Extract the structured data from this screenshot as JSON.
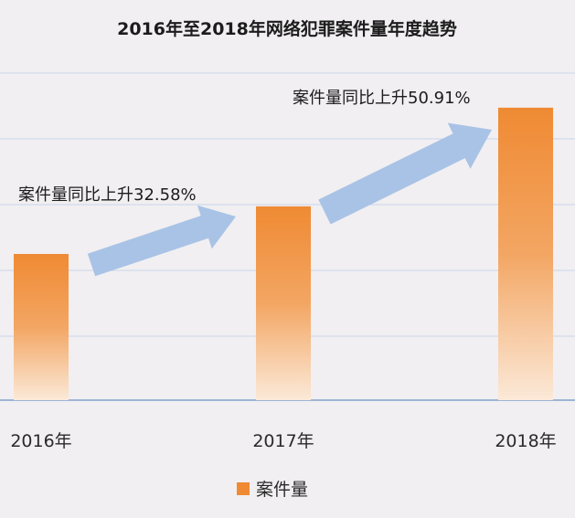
{
  "chart_data": {
    "type": "bar",
    "title": "2016年至2018年网络犯罪案件量年度趋势",
    "categories": [
      "2016年",
      "2017年",
      "2018年"
    ],
    "series": [
      {
        "name": "案件量",
        "values": [
          100,
          132.58,
          200.08
        ]
      }
    ],
    "ylim": [
      0,
      230
    ],
    "grid": true,
    "legend": "bottom",
    "annotations": [
      {
        "text": "案件量同比上升32.58%",
        "from": "2016年",
        "to": "2017年"
      },
      {
        "text": "案件量同比上升50.91%",
        "from": "2017年",
        "to": "2018年"
      }
    ],
    "colors": {
      "bar_top": "#ef8a33",
      "bar_bottom": "#fbe6d2",
      "arrow": "#a9c3e6",
      "grid": "#c9d6ea",
      "axis": "#9fb4d6"
    }
  }
}
